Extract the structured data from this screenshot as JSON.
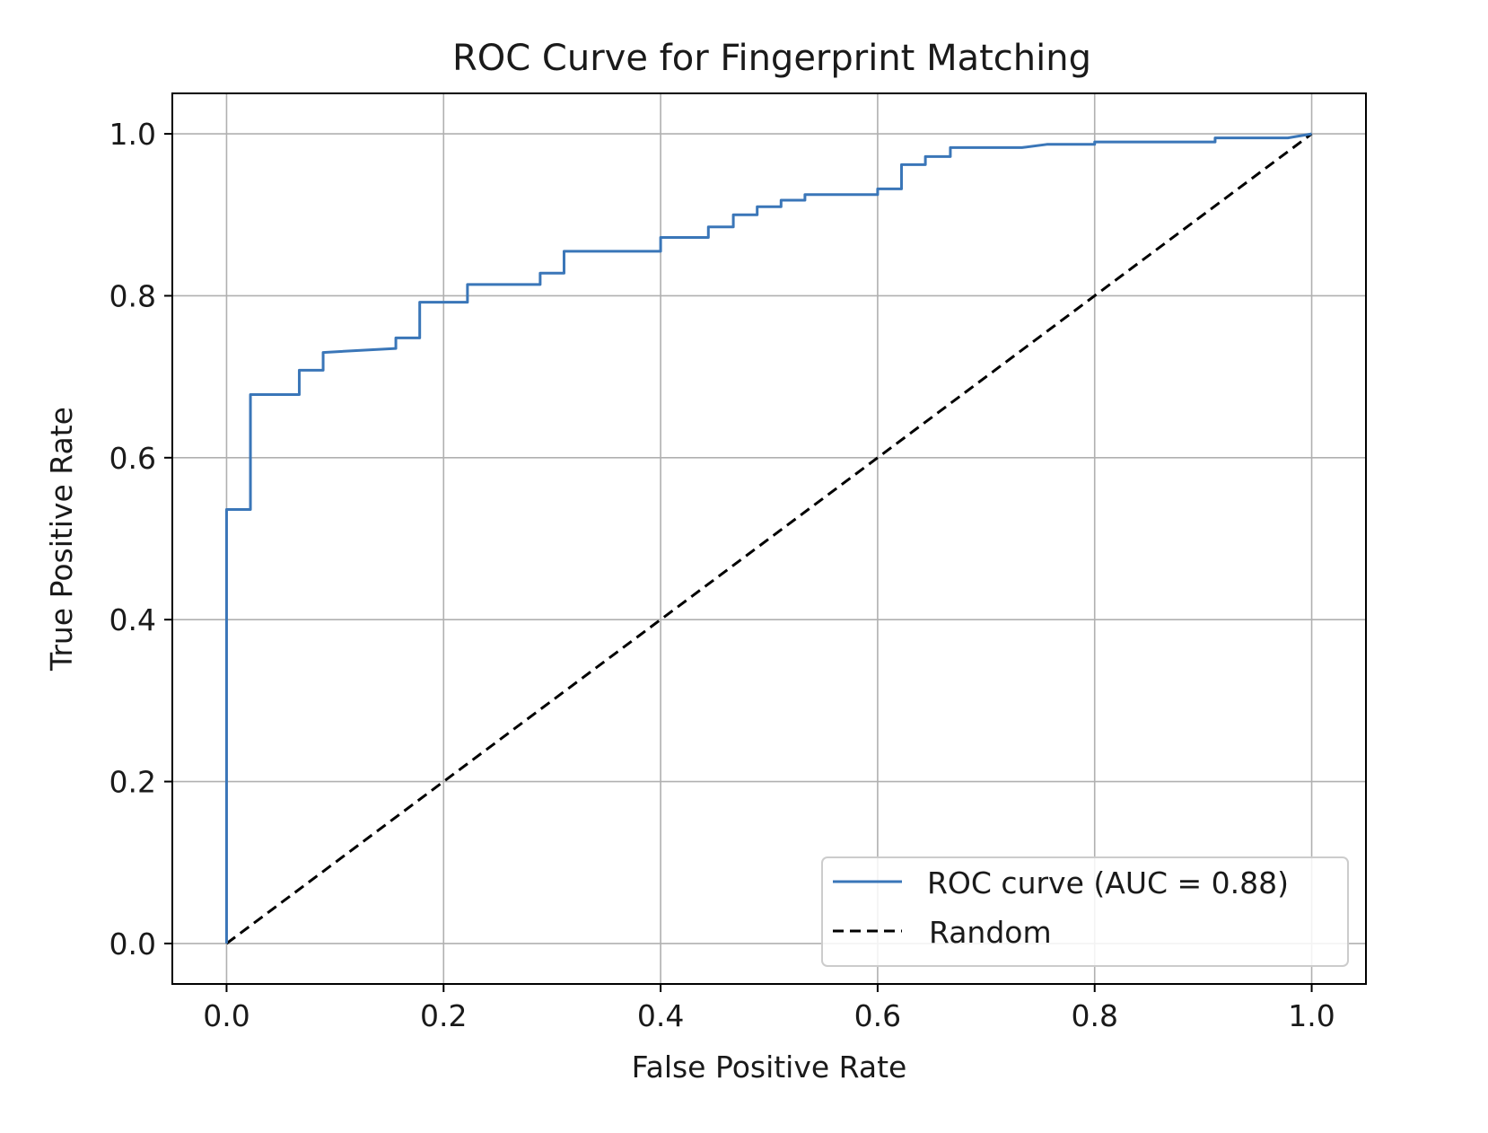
{
  "chart_data": {
    "type": "line",
    "title": "ROC Curve for Fingerprint Matching",
    "xlabel": "False Positive Rate",
    "ylabel": "True Positive Rate",
    "xlim": [
      -0.05,
      1.05
    ],
    "ylim": [
      -0.05,
      1.05
    ],
    "xticks": [
      0.0,
      0.2,
      0.4,
      0.6,
      0.8,
      1.0
    ],
    "yticks": [
      0.0,
      0.2,
      0.4,
      0.6,
      0.8,
      1.0
    ],
    "xtick_labels": [
      "0.0",
      "0.2",
      "0.4",
      "0.6",
      "0.8",
      "1.0"
    ],
    "ytick_labels": [
      "0.0",
      "0.2",
      "0.4",
      "0.6",
      "0.8",
      "1.0"
    ],
    "grid": true,
    "legend_position": "lower-right",
    "series": [
      {
        "name": "ROC curve (AUC = 0.88)",
        "color": "#3a76b8",
        "line_style": "solid",
        "x": [
          0.0,
          0.0,
          0.022,
          0.022,
          0.067,
          0.067,
          0.089,
          0.089,
          0.156,
          0.156,
          0.178,
          0.178,
          0.222,
          0.222,
          0.289,
          0.289,
          0.311,
          0.311,
          0.4,
          0.4,
          0.444,
          0.444,
          0.467,
          0.467,
          0.489,
          0.489,
          0.511,
          0.511,
          0.533,
          0.533,
          0.6,
          0.6,
          0.622,
          0.622,
          0.644,
          0.644,
          0.667,
          0.667,
          0.733,
          0.756,
          0.8,
          0.8,
          0.911,
          0.911,
          0.978,
          1.0
        ],
        "y": [
          0.0,
          0.536,
          0.536,
          0.678,
          0.678,
          0.708,
          0.708,
          0.73,
          0.735,
          0.748,
          0.748,
          0.792,
          0.792,
          0.814,
          0.814,
          0.828,
          0.828,
          0.855,
          0.855,
          0.872,
          0.872,
          0.885,
          0.885,
          0.9,
          0.9,
          0.91,
          0.91,
          0.918,
          0.918,
          0.925,
          0.925,
          0.932,
          0.932,
          0.962,
          0.962,
          0.972,
          0.972,
          0.983,
          0.983,
          0.987,
          0.987,
          0.99,
          0.99,
          0.995,
          0.995,
          1.0
        ]
      },
      {
        "name": "Random",
        "color": "#000000",
        "line_style": "dashed",
        "x": [
          0.0,
          1.0
        ],
        "y": [
          0.0,
          1.0
        ]
      }
    ]
  }
}
